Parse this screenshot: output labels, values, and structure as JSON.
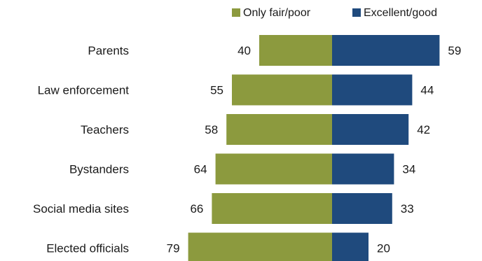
{
  "chart_data": {
    "type": "bar",
    "orientation": "horizontal-diverging",
    "categories": [
      "Parents",
      "Law enforcement",
      "Teachers",
      "Bystanders",
      "Social media sites",
      "Elected officials"
    ],
    "series": [
      {
        "name": "Only fair/poor",
        "values": [
          40,
          55,
          58,
          64,
          66,
          79
        ],
        "color": "#8c9a3e",
        "side": "left"
      },
      {
        "name": "Excellent/good",
        "values": [
          59,
          44,
          42,
          34,
          33,
          20
        ],
        "color": "#1f4a7d",
        "side": "right"
      }
    ],
    "legend": "top",
    "grid": false
  }
}
